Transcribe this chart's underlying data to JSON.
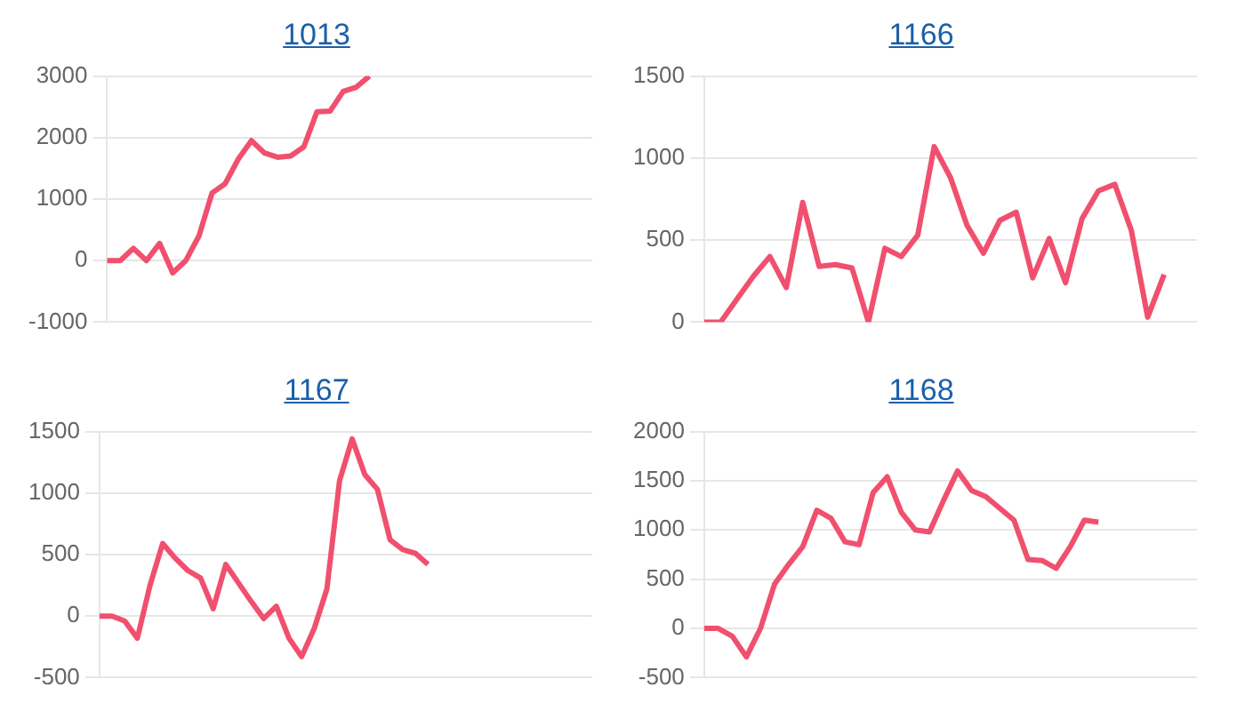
{
  "chart_data": [
    {
      "type": "line",
      "title": "1013",
      "categories": [
        null,
        null,
        null,
        null,
        null,
        null,
        null,
        null,
        null,
        null,
        null,
        null,
        null,
        null,
        null,
        null,
        null,
        null,
        null,
        null,
        null,
        null,
        null,
        null,
        null,
        null,
        null,
        null,
        null,
        null,
        null,
        null,
        null,
        null,
        null,
        null,
        null,
        null
      ],
      "series": [
        {
          "color": "#f0506e",
          "values": [
            0,
            0,
            200,
            0,
            280,
            -200,
            0,
            400,
            1100,
            1250,
            1650,
            1950,
            1750,
            1680,
            1700,
            1850,
            2420,
            2430,
            2750,
            2820,
            3000,
            null,
            null,
            null,
            null,
            null,
            null,
            null,
            null,
            null,
            null,
            null,
            null,
            null,
            null,
            null,
            null,
            null
          ]
        }
      ],
      "ylim": [
        -1000,
        3000
      ],
      "yticks": [
        -1000,
        0,
        1000,
        2000,
        3000
      ],
      "grid": "y",
      "tick_labels": "y",
      "marker": "none"
    },
    {
      "type": "line",
      "title": "1166",
      "categories": [
        null,
        null,
        null,
        null,
        null,
        null,
        null,
        null,
        null,
        null,
        null,
        null,
        null,
        null,
        null,
        null,
        null,
        null,
        null,
        null,
        null,
        null,
        null,
        null,
        null,
        null,
        null,
        null,
        null,
        null,
        null
      ],
      "series": [
        {
          "color": "#f0506e",
          "values": [
            0,
            0,
            140,
            280,
            400,
            210,
            730,
            340,
            350,
            330,
            0,
            450,
            400,
            530,
            1070,
            880,
            590,
            420,
            620,
            670,
            270,
            510,
            240,
            630,
            800,
            840,
            560,
            30,
            290,
            null,
            null
          ]
        }
      ],
      "ylim": [
        0,
        1500
      ],
      "yticks": [
        0,
        500,
        1000,
        1500
      ],
      "grid": "y",
      "tick_labels": "y",
      "marker": "none"
    },
    {
      "type": "line",
      "title": "1167",
      "categories": [
        null,
        null,
        null,
        null,
        null,
        null,
        null,
        null,
        null,
        null,
        null,
        null,
        null,
        null,
        null,
        null,
        null,
        null,
        null,
        null,
        null,
        null,
        null,
        null,
        null,
        null,
        null,
        null,
        null,
        null,
        null,
        null,
        null,
        null,
        null,
        null,
        null,
        null,
        null,
        null
      ],
      "series": [
        {
          "color": "#f0506e",
          "values": [
            0,
            0,
            -40,
            -180,
            250,
            590,
            470,
            370,
            310,
            60,
            420,
            270,
            120,
            -20,
            80,
            -180,
            -330,
            -100,
            220,
            1100,
            1440,
            1150,
            1030,
            620,
            540,
            510,
            420,
            null,
            null,
            null,
            null,
            null,
            null,
            null,
            null,
            null,
            null,
            null,
            null,
            null
          ]
        }
      ],
      "ylim": [
        -500,
        1500
      ],
      "yticks": [
        -500,
        0,
        500,
        1000,
        1500
      ],
      "grid": "y",
      "tick_labels": "y",
      "marker": "none"
    },
    {
      "type": "line",
      "title": "1168",
      "categories": [
        null,
        null,
        null,
        null,
        null,
        null,
        null,
        null,
        null,
        null,
        null,
        null,
        null,
        null,
        null,
        null,
        null,
        null,
        null,
        null,
        null,
        null,
        null,
        null,
        null,
        null,
        null,
        null,
        null,
        null,
        null,
        null,
        null,
        null,
        null,
        null
      ],
      "series": [
        {
          "color": "#f0506e",
          "values": [
            0,
            0,
            -80,
            -290,
            0,
            450,
            650,
            830,
            1200,
            1120,
            880,
            850,
            1380,
            1540,
            1180,
            1000,
            980,
            1300,
            1600,
            1400,
            1340,
            1220,
            1100,
            700,
            690,
            610,
            830,
            1100,
            1080,
            null,
            null,
            null,
            null,
            null,
            null,
            null
          ]
        }
      ],
      "ylim": [
        -500,
        2000
      ],
      "yticks": [
        -500,
        0,
        500,
        1000,
        1500,
        2000
      ],
      "grid": "y",
      "tick_labels": "y",
      "marker": "none"
    }
  ]
}
